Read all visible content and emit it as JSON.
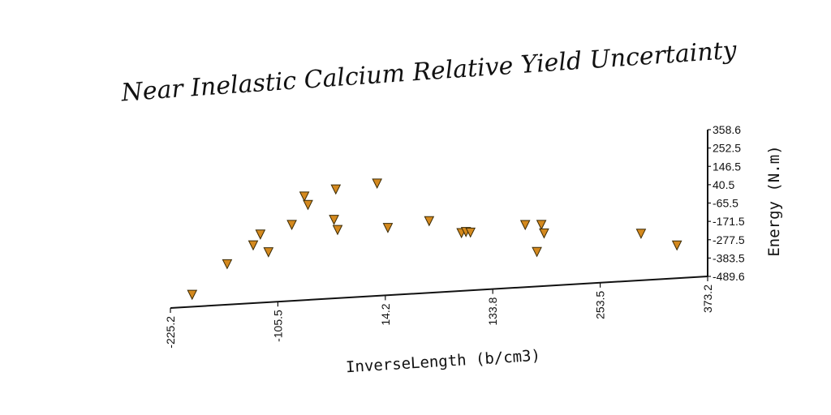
{
  "chart_data": {
    "type": "scatter",
    "title": "Near Inelastic Calcium Relative Yield Uncertainty",
    "xlabel": "InverseLength (b/cm3)",
    "ylabel": "Energy (N.m)",
    "x_ticks": [
      "-225.2",
      "-105.5",
      "14.2",
      "133.8",
      "253.5",
      "373.2"
    ],
    "y_ticks": [
      "358.6",
      "252.5",
      "146.5",
      "40.5",
      "-65.5",
      "-171.5",
      "-277.5",
      "-383.5",
      "-489.6"
    ],
    "xlim": [
      -225.2,
      373.2
    ],
    "ylim": [
      -489.6,
      358.6
    ],
    "marker": "triangle-down",
    "marker_color": "#d4891e",
    "points": [
      {
        "x": -201,
        "y": -420
      },
      {
        "x": -162,
        "y": -255
      },
      {
        "x": -133,
        "y": -155
      },
      {
        "x": -125,
        "y": -95
      },
      {
        "x": -116,
        "y": -200
      },
      {
        "x": -90,
        "y": -50
      },
      {
        "x": -76,
        "y": 110
      },
      {
        "x": -72,
        "y": 60
      },
      {
        "x": -43,
        "y": -35
      },
      {
        "x": -41,
        "y": 140
      },
      {
        "x": -39,
        "y": -95
      },
      {
        "x": 5,
        "y": 160
      },
      {
        "x": 17,
        "y": -100
      },
      {
        "x": 63,
        "y": -75
      },
      {
        "x": 99,
        "y": -155
      },
      {
        "x": 104,
        "y": -150
      },
      {
        "x": 109,
        "y": -155
      },
      {
        "x": 170,
        "y": -130
      },
      {
        "x": 183,
        "y": -290
      },
      {
        "x": 188,
        "y": -135
      },
      {
        "x": 191,
        "y": -185
      },
      {
        "x": 299,
        "y": -220
      },
      {
        "x": 339,
        "y": -300
      }
    ]
  }
}
